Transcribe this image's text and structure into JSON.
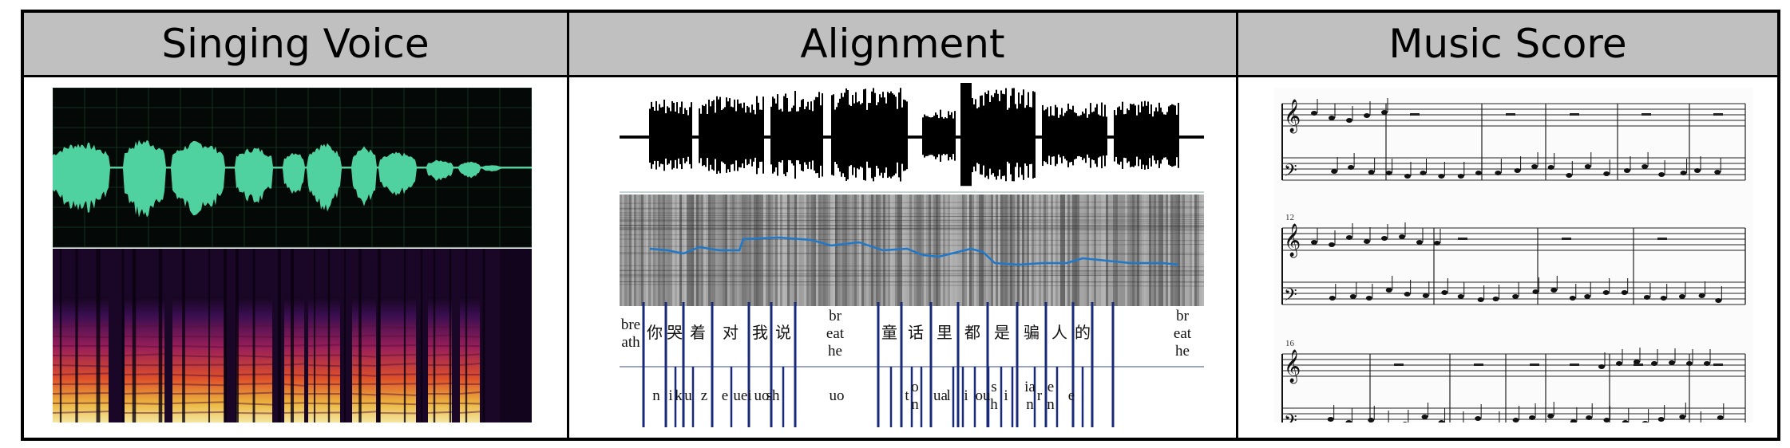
{
  "headers": {
    "singing_voice": "Singing Voice",
    "alignment": "Alignment",
    "music_score": "Music Score"
  },
  "alignment": {
    "characters": [
      "bre\nath",
      "你",
      "哭",
      "着",
      "对",
      "我",
      "说",
      "br\neat\nhe",
      "童",
      "话",
      "里",
      "都",
      "是",
      "骗",
      "人",
      "的",
      "br\neat\nhe"
    ],
    "phonemes": [
      "n",
      "i",
      "k",
      "u",
      "z",
      "e",
      "uei",
      "uo",
      "sh",
      "uo",
      "t",
      "o\nn",
      "ua",
      "l",
      "i",
      "ou",
      "s\nh",
      "i",
      "ia\nn",
      "r",
      "e\nn",
      "e"
    ]
  },
  "score": {
    "measure_numbers": [
      "12",
      "16"
    ]
  },
  "colors": {
    "waveform_green": "#4fd1a0",
    "pitch_line": "#1f78c8",
    "header_gray": "#c0c0c0"
  }
}
